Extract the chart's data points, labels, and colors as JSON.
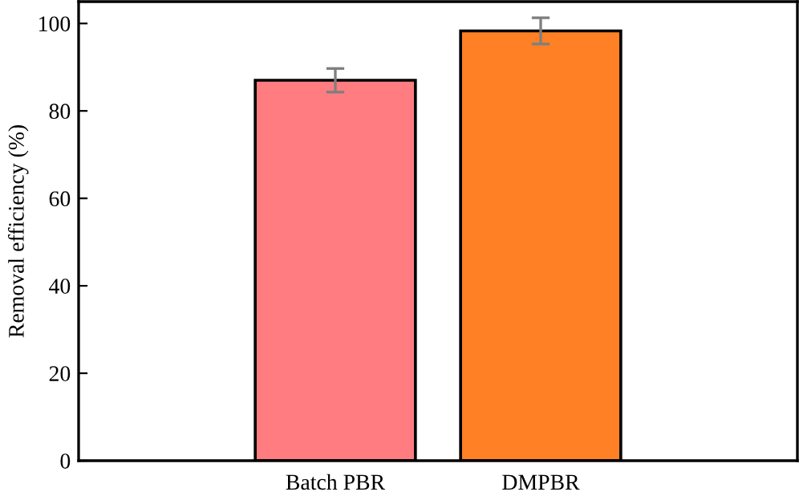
{
  "chart_data": {
    "type": "bar",
    "ylabel": "Removal efficiency (%)",
    "categories": [
      "Batch PBR",
      "DMPBR"
    ],
    "values": [
      87,
      98.3
    ],
    "colors": [
      "#ff7c80",
      "#ff8025"
    ],
    "errors": [
      2.7,
      3
    ],
    "ylim": [
      0,
      105
    ],
    "yticks": [
      0,
      20,
      40,
      60,
      80,
      100
    ],
    "grid": false,
    "legend": false
  }
}
